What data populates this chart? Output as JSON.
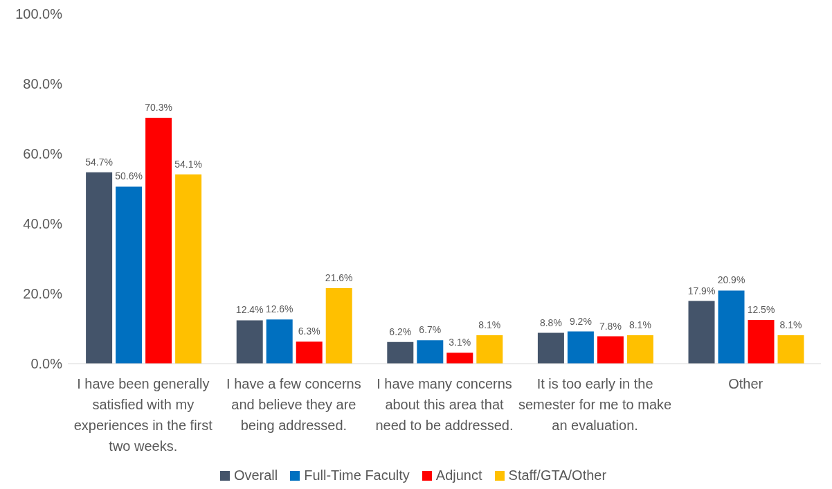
{
  "chart_data": {
    "type": "bar",
    "categories": [
      "I have been generally satisfied with my experiences in the first two weeks.",
      "I have a few concerns and believe they are being addressed.",
      "I have many concerns about this area that need to be addressed.",
      "It is too early in the semester for me to make an evaluation.",
      "Other"
    ],
    "series": [
      {
        "name": "Overall",
        "color": "#44546a",
        "values": [
          54.7,
          12.4,
          6.2,
          8.8,
          17.9
        ],
        "value_labels": [
          "54.7%",
          "12.4%",
          "6.2%",
          "8.8%",
          "17.9%"
        ]
      },
      {
        "name": "Full-Time Faculty",
        "color": "#0070c0",
        "values": [
          50.6,
          12.6,
          6.7,
          9.2,
          20.9
        ],
        "value_labels": [
          "50.6%",
          "12.6%",
          "6.7%",
          "9.2%",
          "20.9%"
        ]
      },
      {
        "name": "Adjunct",
        "color": "#ff0000",
        "values": [
          70.3,
          6.3,
          3.1,
          7.8,
          12.5
        ],
        "value_labels": [
          "70.3%",
          "6.3%",
          "3.1%",
          "7.8%",
          "12.5%"
        ]
      },
      {
        "name": "Staff/GTA/Other",
        "color": "#ffc000",
        "values": [
          54.1,
          21.6,
          8.1,
          8.1,
          8.1
        ],
        "value_labels": [
          "54.1%",
          "21.6%",
          "8.1%",
          "8.1%",
          "8.1%"
        ]
      }
    ],
    "ylim": [
      0,
      100
    ],
    "yticks": [
      {
        "value": 0,
        "label": "0.0%"
      },
      {
        "value": 20,
        "label": "20.0%"
      },
      {
        "value": 40,
        "label": "40.0%"
      },
      {
        "value": 60,
        "label": "60.0%"
      },
      {
        "value": 80,
        "label": "80.0%"
      },
      {
        "value": 100,
        "label": "100.0%"
      }
    ],
    "grid": false,
    "legend": "bottom"
  }
}
